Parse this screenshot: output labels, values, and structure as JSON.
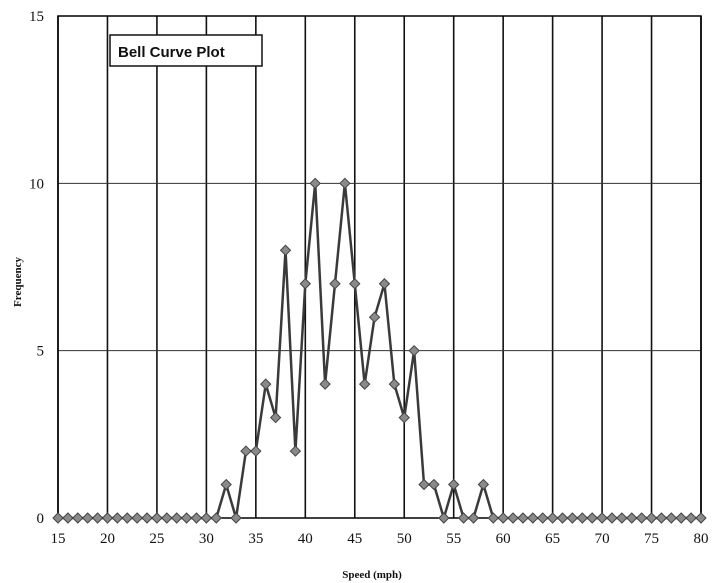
{
  "chart_data": {
    "type": "line",
    "title": "Bell Curve Plot",
    "xlabel": "Speed (mph)",
    "ylabel": "Frequency",
    "xlim": [
      15,
      80
    ],
    "ylim": [
      0,
      15
    ],
    "xticks": [
      "15",
      "20",
      "25",
      "30",
      "35",
      "40",
      "45",
      "50",
      "55",
      "60",
      "65",
      "70",
      "75",
      "80"
    ],
    "yticks": [
      "0",
      "5",
      "10",
      "15"
    ],
    "grid": true,
    "series": [
      {
        "name": "",
        "color": "#3a3a3a",
        "marker": "diamond",
        "x": [
          15,
          16,
          17,
          18,
          19,
          20,
          21,
          22,
          23,
          24,
          25,
          26,
          27,
          28,
          29,
          30,
          31,
          32,
          33,
          34,
          35,
          36,
          37,
          38,
          39,
          40,
          41,
          42,
          43,
          44,
          45,
          46,
          47,
          48,
          49,
          50,
          51,
          52,
          53,
          54,
          55,
          56,
          57,
          58,
          59,
          60,
          61,
          62,
          63,
          64,
          65,
          66,
          67,
          68,
          69,
          70,
          71,
          72,
          73,
          74,
          75,
          76,
          77,
          78,
          79,
          80
        ],
        "y": [
          0,
          0,
          0,
          0,
          0,
          0,
          0,
          0,
          0,
          0,
          0,
          0,
          0,
          0,
          0,
          0,
          0,
          1,
          0,
          2,
          2,
          4,
          3,
          8,
          2,
          7,
          10,
          4,
          7,
          10,
          7,
          4,
          6,
          7,
          4,
          3,
          5,
          1,
          1,
          0,
          1,
          0,
          0,
          1,
          0,
          0,
          0,
          0,
          0,
          0,
          0,
          0,
          0,
          0,
          0,
          0,
          0,
          0,
          0,
          0,
          0,
          0,
          0,
          0,
          0,
          0
        ]
      }
    ]
  }
}
